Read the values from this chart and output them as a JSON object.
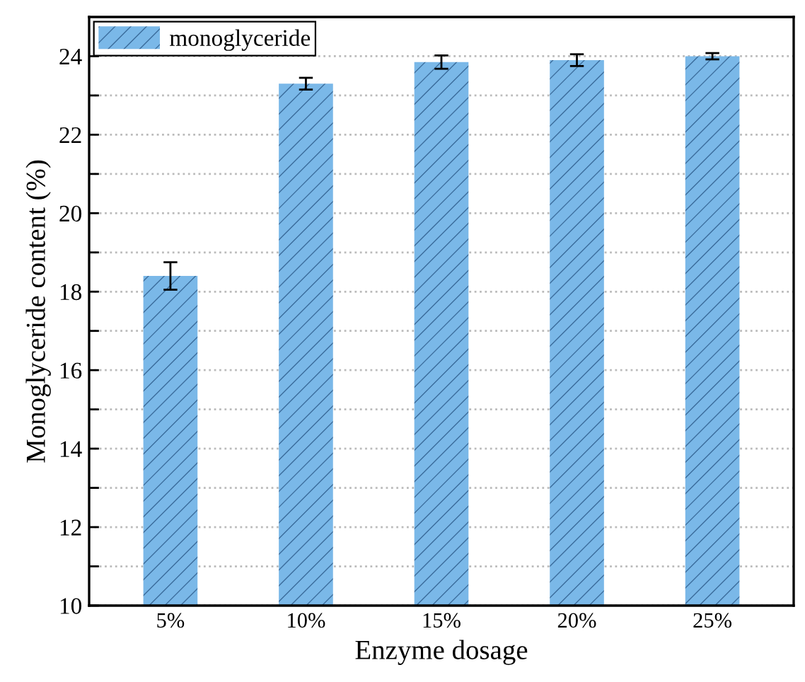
{
  "chart_data": {
    "type": "bar",
    "xlabel": "Enzyme dosage",
    "ylabel": "Monoglyceride content (%)",
    "categories": [
      "5%",
      "10%",
      "15%",
      "20%",
      "25%"
    ],
    "series": [
      {
        "name": "monoglyceride",
        "color": "#7ab8e8",
        "values": [
          18.4,
          23.3,
          23.85,
          23.9,
          24.0
        ],
        "errors": [
          0.35,
          0.15,
          0.17,
          0.15,
          0.08
        ]
      }
    ],
    "ylim": [
      10,
      25
    ],
    "yticks": [
      10,
      {
        "value": 11,
        "label": null
      },
      12,
      {
        "value": 13,
        "label": null
      },
      14,
      {
        "value": 15,
        "label": null
      },
      16,
      {
        "value": 17,
        "label": null
      },
      18,
      {
        "value": 19,
        "label": null
      },
      20,
      {
        "value": 21,
        "label": null
      },
      22,
      {
        "value": 23,
        "label": null
      },
      24
    ],
    "grid": "y",
    "legend": "top left"
  }
}
